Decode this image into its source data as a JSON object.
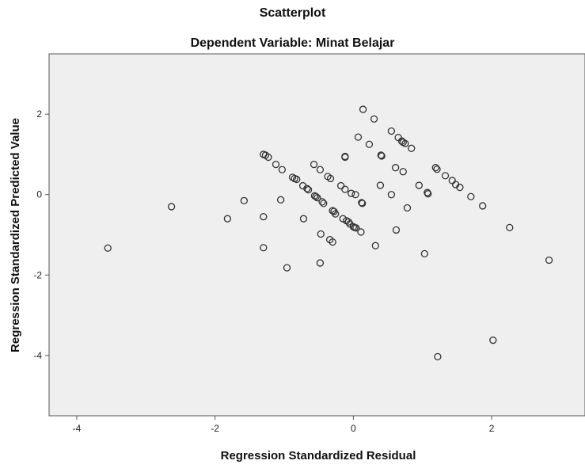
{
  "chart_data": {
    "type": "scatter",
    "title": "Scatterplot",
    "subtitle": "Dependent Variable: Minat Belajar",
    "xlabel": "Regression Standardized Residual",
    "ylabel": "Regression Standardized Predicted Value",
    "xlim": [
      -4.4,
      3.35
    ],
    "ylim": [
      -5.5,
      3.5
    ],
    "xticks": [
      "-4",
      "-2",
      "0",
      "2"
    ],
    "xtick_values": [
      -4,
      -2,
      0,
      2
    ],
    "yticks": [
      "2",
      "0",
      "-2",
      "-4"
    ],
    "ytick_values": [
      2,
      0,
      -2,
      -4
    ],
    "grid": false,
    "plot_background": "#efefef",
    "marker_color": "#333333",
    "points": [
      [
        -3.55,
        -1.33
      ],
      [
        -2.63,
        -0.3
      ],
      [
        -1.82,
        -0.6
      ],
      [
        -1.58,
        -0.15
      ],
      [
        -1.3,
        -0.55
      ],
      [
        -1.3,
        -1.32
      ],
      [
        -1.3,
        1.0
      ],
      [
        -1.27,
        0.98
      ],
      [
        -1.23,
        0.93
      ],
      [
        -1.12,
        0.75
      ],
      [
        -1.03,
        0.62
      ],
      [
        -1.05,
        -0.13
      ],
      [
        -0.96,
        -1.82
      ],
      [
        -0.88,
        0.43
      ],
      [
        -0.85,
        0.4
      ],
      [
        -0.82,
        0.38
      ],
      [
        -0.73,
        0.22
      ],
      [
        -0.72,
        -0.6
      ],
      [
        -0.67,
        0.15
      ],
      [
        -0.65,
        0.12
      ],
      [
        -0.57,
        0.75
      ],
      [
        -0.56,
        -0.03
      ],
      [
        -0.54,
        -0.05
      ],
      [
        -0.52,
        -0.08
      ],
      [
        -0.48,
        0.62
      ],
      [
        -0.47,
        -0.98
      ],
      [
        -0.48,
        -1.7
      ],
      [
        -0.45,
        -0.18
      ],
      [
        -0.43,
        -0.22
      ],
      [
        -0.37,
        0.45
      ],
      [
        -0.34,
        -1.12
      ],
      [
        -0.33,
        0.4
      ],
      [
        -0.3,
        -0.4
      ],
      [
        -0.28,
        -0.42
      ],
      [
        -0.3,
        -1.18
      ],
      [
        -0.26,
        -0.48
      ],
      [
        -0.18,
        0.22
      ],
      [
        -0.15,
        -0.6
      ],
      [
        -0.12,
        0.13
      ],
      [
        -0.12,
        0.95
      ],
      [
        -0.12,
        0.93
      ],
      [
        -0.1,
        -0.65
      ],
      [
        -0.07,
        -0.68
      ],
      [
        -0.05,
        -0.73
      ],
      [
        -0.03,
        0.03
      ],
      [
        0.0,
        -0.8
      ],
      [
        0.02,
        -0.82
      ],
      [
        0.03,
        0.0
      ],
      [
        0.04,
        -0.83
      ],
      [
        0.07,
        1.43
      ],
      [
        0.11,
        -0.93
      ],
      [
        0.12,
        -0.2
      ],
      [
        0.13,
        -0.22
      ],
      [
        0.14,
        2.12
      ],
      [
        0.23,
        1.25
      ],
      [
        0.3,
        1.88
      ],
      [
        0.32,
        -1.27
      ],
      [
        0.39,
        0.23
      ],
      [
        0.4,
        0.98
      ],
      [
        0.41,
        0.96
      ],
      [
        0.55,
        1.58
      ],
      [
        0.55,
        0.0
      ],
      [
        0.61,
        0.67
      ],
      [
        0.62,
        -0.88
      ],
      [
        0.65,
        1.42
      ],
      [
        0.7,
        1.33
      ],
      [
        0.72,
        1.3
      ],
      [
        0.75,
        1.27
      ],
      [
        0.72,
        0.57
      ],
      [
        0.78,
        -0.33
      ],
      [
        0.84,
        1.15
      ],
      [
        0.95,
        0.23
      ],
      [
        1.03,
        -1.47
      ],
      [
        1.07,
        0.05
      ],
      [
        1.08,
        0.02
      ],
      [
        1.19,
        0.67
      ],
      [
        1.21,
        0.63
      ],
      [
        1.22,
        -4.03
      ],
      [
        1.33,
        0.47
      ],
      [
        1.43,
        0.35
      ],
      [
        1.48,
        0.25
      ],
      [
        1.54,
        0.18
      ],
      [
        1.7,
        -0.05
      ],
      [
        1.87,
        -0.28
      ],
      [
        2.02,
        -3.62
      ],
      [
        2.26,
        -0.82
      ],
      [
        2.83,
        -1.63
      ]
    ]
  }
}
